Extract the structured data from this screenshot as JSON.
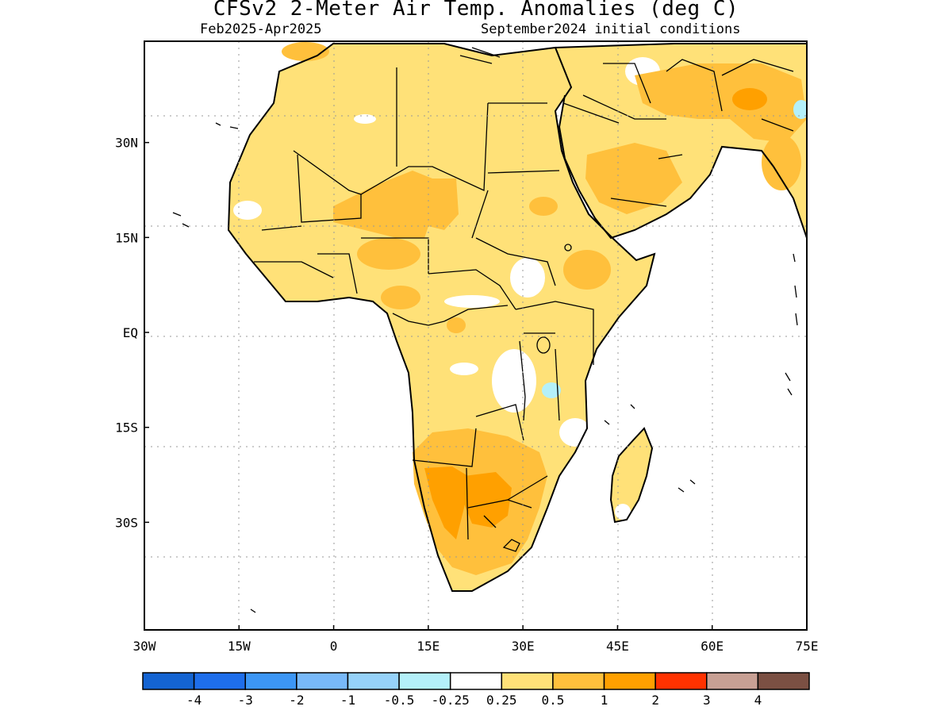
{
  "title": "CFSv2 2-Meter Air Temp. Anomalies (deg C)",
  "subtitle_left": "Feb2025-Apr2025",
  "subtitle_right": "September2024 initial conditions",
  "map": {
    "region": "Africa and Middle East",
    "lon_range": [
      -30,
      75
    ],
    "lat_range": [
      -47,
      46
    ],
    "grid": true,
    "lon_ticks": [
      {
        "value": -30,
        "label": "30W"
      },
      {
        "value": -15,
        "label": "15W"
      },
      {
        "value": 0,
        "label": "0"
      },
      {
        "value": 15,
        "label": "15E"
      },
      {
        "value": 30,
        "label": "30E"
      },
      {
        "value": 45,
        "label": "45E"
      },
      {
        "value": 60,
        "label": "60E"
      },
      {
        "value": 75,
        "label": "75E"
      }
    ],
    "lat_ticks": [
      {
        "value": 30,
        "label": "30N"
      },
      {
        "value": 15,
        "label": "15N"
      },
      {
        "value": 0,
        "label": "EQ"
      },
      {
        "value": -15,
        "label": "15S"
      },
      {
        "value": -30,
        "label": "30S"
      }
    ],
    "anomaly_regions": [
      {
        "name": "north-africa",
        "category": "0.25-0.5"
      },
      {
        "name": "sahel-warm",
        "category": "0.5-1"
      },
      {
        "name": "arabian-peninsula",
        "category": "0.5-1"
      },
      {
        "name": "iran",
        "category": "0.5-1"
      },
      {
        "name": "southern-africa",
        "category": "1-2"
      },
      {
        "name": "lake-tanganyika-cool",
        "category": "-0.5--0.25"
      }
    ]
  },
  "colorbar": {
    "colors": [
      "#1464d2",
      "#1e6eeb",
      "#3c96f5",
      "#78b9fa",
      "#96d2fa",
      "#b4f0fa",
      "#ffffff",
      "#ffe178",
      "#ffc03c",
      "#ffa000",
      "#ff3200",
      "#c8a094",
      "#7b5043"
    ],
    "labels": [
      "-4",
      "-3",
      "-2",
      "-1",
      "-0.5",
      "-0.25",
      "0.25",
      "0.5",
      "1",
      "2",
      "3",
      "4"
    ]
  }
}
